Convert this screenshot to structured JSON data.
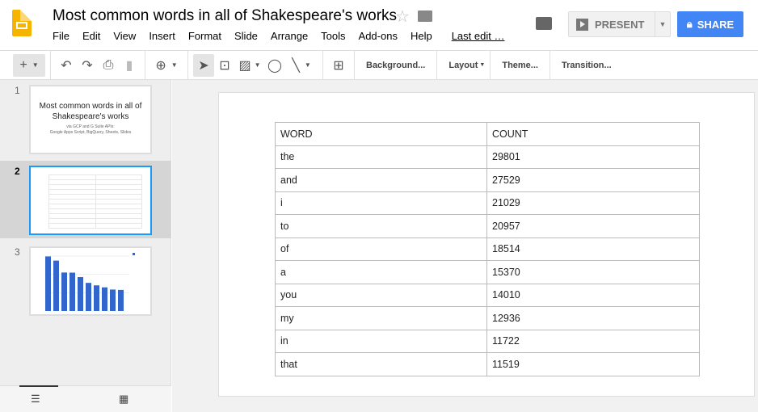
{
  "app": {
    "title": "Most common words in all of Shakespeare's works",
    "menu": [
      "File",
      "Edit",
      "View",
      "Insert",
      "Format",
      "Slide",
      "Arrange",
      "Tools",
      "Add-ons",
      "Help"
    ],
    "last_edit": "Last edit …",
    "present_label": "PRESENT",
    "share_label": "SHARE"
  },
  "toolbar": {
    "background": "Background...",
    "layout": "Layout",
    "theme": "Theme...",
    "transition": "Transition..."
  },
  "slides": [
    {
      "number": "1",
      "title": "Most common words in all of Shakespeare's works",
      "subtitle1": "via GCP and G Suite APIs:",
      "subtitle2": "Google Apps Script, BigQuery, Sheets, Slides"
    },
    {
      "number": "2"
    },
    {
      "number": "3"
    }
  ],
  "table": {
    "headers": [
      "WORD",
      "COUNT"
    ],
    "rows": [
      [
        "the",
        "29801"
      ],
      [
        "and",
        "27529"
      ],
      [
        "i",
        "21029"
      ],
      [
        "to",
        "20957"
      ],
      [
        "of",
        "18514"
      ],
      [
        "a",
        "15370"
      ],
      [
        "you",
        "14010"
      ],
      [
        "my",
        "12936"
      ],
      [
        "in",
        "11722"
      ],
      [
        "that",
        "11519"
      ]
    ]
  },
  "colors": {
    "accent": "#4285f4",
    "bar": "#3366cc",
    "selected_border": "#1a9bfc"
  }
}
